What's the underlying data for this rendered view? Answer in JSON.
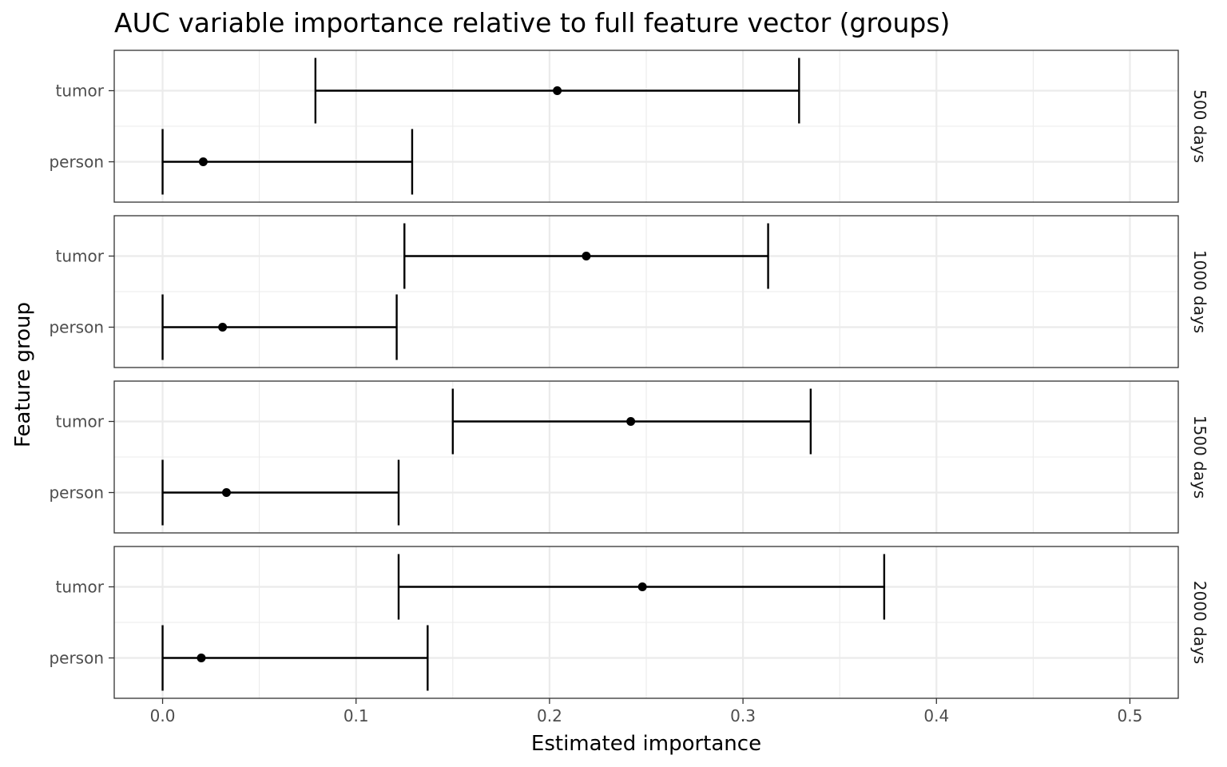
{
  "chart_data": {
    "type": "errorbar",
    "title": "AUC variable importance relative to full feature vector (groups)",
    "xlabel": "Estimated importance",
    "ylabel": "Feature group",
    "xlim": [
      -0.025,
      0.525
    ],
    "x_ticks": [
      0.0,
      0.1,
      0.2,
      0.3,
      0.4,
      0.5
    ],
    "x_tick_labels": [
      "0.0",
      "0.1",
      "0.2",
      "0.3",
      "0.4",
      "0.5"
    ],
    "categories": [
      "tumor",
      "person"
    ],
    "grid": true,
    "facets": [
      {
        "label": "500 days",
        "rows": [
          {
            "group": "tumor",
            "estimate": 0.204,
            "lower": 0.079,
            "upper": 0.329
          },
          {
            "group": "person",
            "estimate": 0.021,
            "lower": 0.0,
            "upper": 0.129
          }
        ]
      },
      {
        "label": "1000 days",
        "rows": [
          {
            "group": "tumor",
            "estimate": 0.219,
            "lower": 0.125,
            "upper": 0.313
          },
          {
            "group": "person",
            "estimate": 0.031,
            "lower": 0.0,
            "upper": 0.121
          }
        ]
      },
      {
        "label": "1500 days",
        "rows": [
          {
            "group": "tumor",
            "estimate": 0.242,
            "lower": 0.15,
            "upper": 0.335
          },
          {
            "group": "person",
            "estimate": 0.033,
            "lower": 0.0,
            "upper": 0.122
          }
        ]
      },
      {
        "label": "2000 days",
        "rows": [
          {
            "group": "tumor",
            "estimate": 0.248,
            "lower": 0.122,
            "upper": 0.373
          },
          {
            "group": "person",
            "estimate": 0.02,
            "lower": 0.0,
            "upper": 0.137
          }
        ]
      }
    ]
  }
}
